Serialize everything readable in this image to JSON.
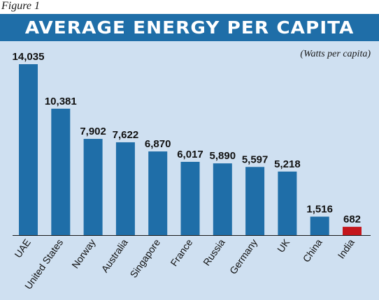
{
  "figure_label": "Figure 1",
  "chart_data": {
    "type": "bar",
    "title": "AVERAGE ENERGY PER CAPITA",
    "units_note": "(Watts per capita)",
    "categories": [
      "UAE",
      "United States",
      "Norway",
      "Australia",
      "Singapore",
      "France",
      "Russia",
      "Germany",
      "UK",
      "China",
      "India"
    ],
    "values": [
      14035,
      10381,
      7902,
      7622,
      6870,
      6017,
      5890,
      5597,
      5218,
      1516,
      682
    ],
    "value_labels": [
      "14,035",
      "10,381",
      "7,902",
      "7,622",
      "6,870",
      "6,017",
      "5,890",
      "5,597",
      "5,218",
      "1,516",
      "682"
    ],
    "ylim": [
      0,
      14035
    ],
    "grid": false,
    "legend": "none",
    "colors": {
      "bar": "#1f6ea8",
      "highlight_bar": "#c4161c",
      "title_bar": "#1f6ea8",
      "plot_background": "#cfe0f1"
    },
    "highlight_category": "India"
  }
}
